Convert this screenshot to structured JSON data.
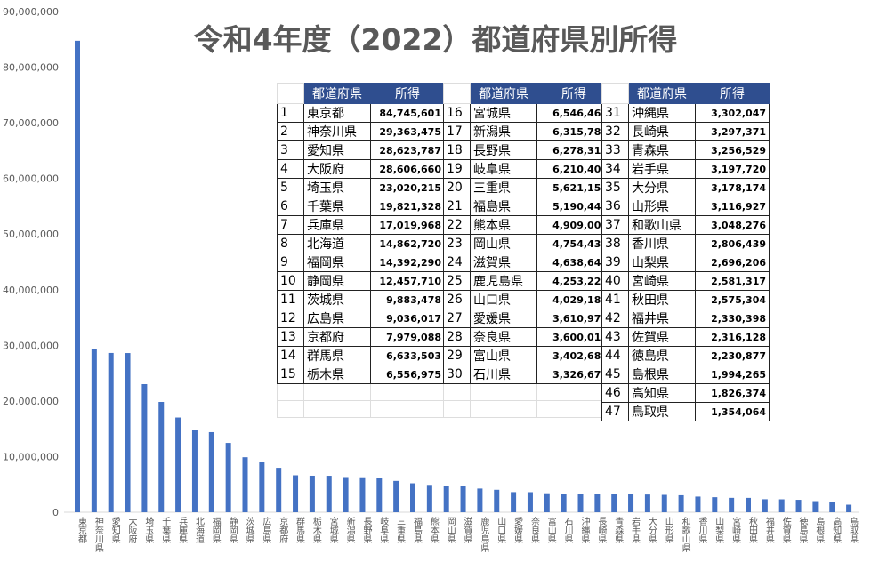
{
  "title": "令和4年度（2022）都道府県別所得",
  "table": {
    "header_name": "都道府県",
    "header_value": "所得"
  },
  "colors": {
    "bar": "#4472c4",
    "header": "#2f4e8f",
    "title": "#595959"
  },
  "chart_data": {
    "type": "bar",
    "title": "令和4年度（2022）都道府県別所得",
    "ylim": [
      0,
      90000000
    ],
    "yticks": [
      "0",
      "10,000,000",
      "20,000,000",
      "30,000,000",
      "40,000,000",
      "50,000,000",
      "60,000,000",
      "70,000,000",
      "80,000,000",
      "90,000,000"
    ],
    "grid": false,
    "categories": [
      "東京都",
      "神奈川県",
      "愛知県",
      "大阪府",
      "埼玉県",
      "千葉県",
      "兵庫県",
      "北海道",
      "福岡県",
      "静岡県",
      "茨城県",
      "広島県",
      "京都府",
      "群馬県",
      "栃木県",
      "宮城県",
      "新潟県",
      "長野県",
      "岐阜県",
      "三重県",
      "福島県",
      "熊本県",
      "岡山県",
      "滋賀県",
      "鹿児島県",
      "山口県",
      "愛媛県",
      "奈良県",
      "富山県",
      "石川県",
      "沖縄県",
      "長崎県",
      "青森県",
      "岩手県",
      "大分県",
      "山形県",
      "和歌山県",
      "香川県",
      "山梨県",
      "宮崎県",
      "秋田県",
      "福井県",
      "佐賀県",
      "徳島県",
      "島根県",
      "高知県",
      "鳥取県"
    ],
    "values": [
      84745601,
      29363475,
      28623787,
      28606660,
      23020215,
      19821328,
      17019968,
      14862720,
      14392290,
      12457710,
      9883478,
      9036017,
      7979088,
      6633503,
      6556975,
      6546469,
      6315785,
      6278318,
      6210408,
      5621150,
      5190449,
      4909008,
      4754430,
      4638642,
      4253221,
      4029183,
      3610974,
      3600010,
      3402682,
      3326670,
      3302047,
      3297371,
      3256529,
      3197720,
      3178174,
      3116927,
      3048276,
      2806439,
      2696206,
      2581317,
      2575304,
      2330398,
      2316128,
      2230877,
      1994265,
      1826374,
      1354064
    ]
  }
}
